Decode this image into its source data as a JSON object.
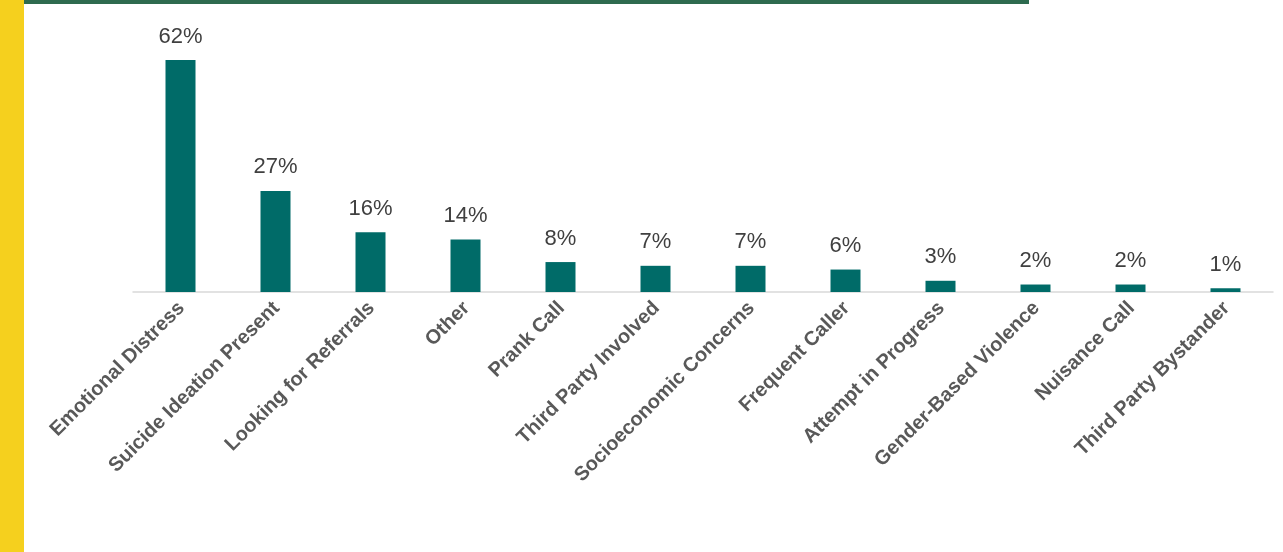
{
  "chart_data": {
    "type": "bar",
    "categories": [
      "Emotional Distress",
      "Suicide Ideation Present",
      "Looking for Referrals",
      "Other",
      "Prank Call",
      "Third Party Involved",
      "Socioeconomic Concerns",
      "Frequent Caller",
      "Attempt in Progress",
      "Gender-Based Violence",
      "Nuisance Call",
      "Third Party Bystander"
    ],
    "values": [
      62,
      27,
      16,
      14,
      8,
      7,
      7,
      6,
      3,
      2,
      2,
      1
    ],
    "value_labels": [
      "62%",
      "27%",
      "16%",
      "14%",
      "8%",
      "7%",
      "7%",
      "6%",
      "3%",
      "2%",
      "2%",
      "1%"
    ],
    "color": "#006b68"
  }
}
